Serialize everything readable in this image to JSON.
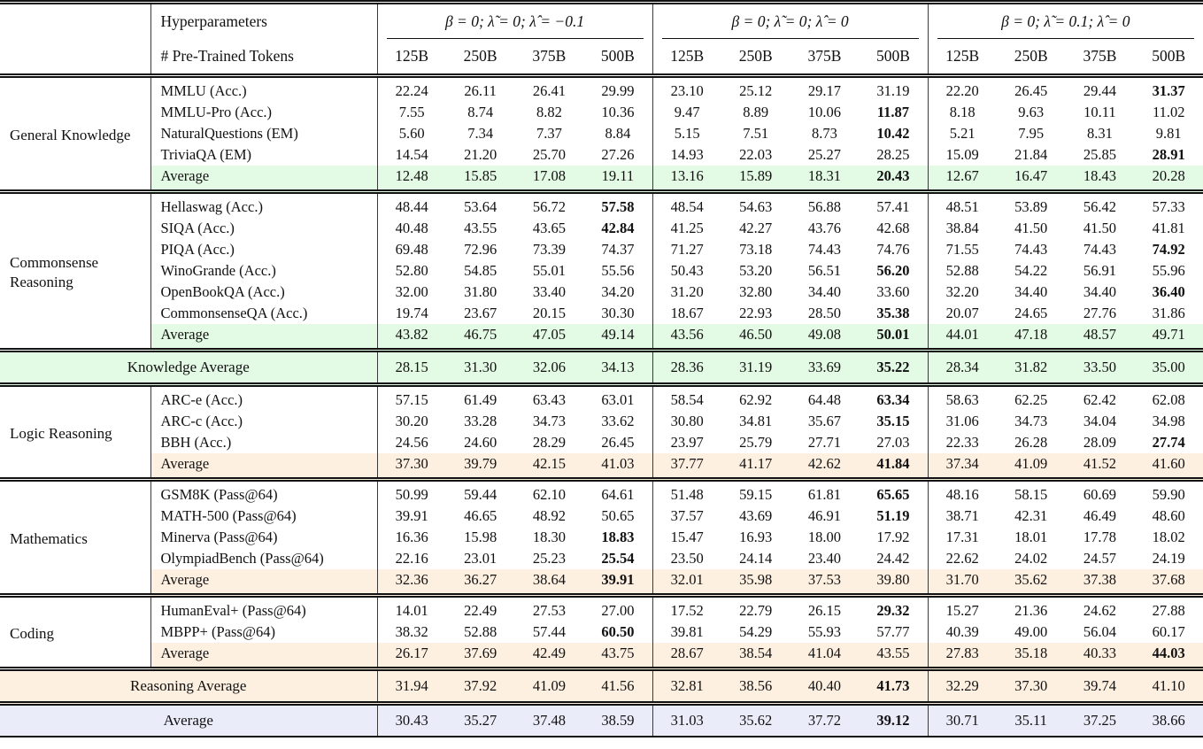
{
  "colors": {
    "green": "#e3fae4",
    "peach": "#fdf0e1",
    "lavender": "#ebecfa",
    "rule": "#111111"
  },
  "header": {
    "hyperparameters_label": "Hyperparameters",
    "tokens_label": "# Pre-Trained Tokens",
    "groups": [
      {
        "label": "β = 0;  λ̃ = 0;  λ̂ = −0.1",
        "tokens": [
          "125B",
          "250B",
          "375B",
          "500B"
        ]
      },
      {
        "label": "β = 0;  λ̃ = 0;  λ̂ = 0",
        "tokens": [
          "125B",
          "250B",
          "375B",
          "500B"
        ]
      },
      {
        "label": "β = 0;  λ̃ = 0.1;  λ̂ = 0",
        "tokens": [
          "125B",
          "250B",
          "375B",
          "500B"
        ]
      }
    ]
  },
  "blocks": [
    {
      "type": "section",
      "category": "General Knowledge",
      "rows": [
        {
          "benchmark": "MMLU (Acc.)",
          "values": [
            "22.24",
            "26.11",
            "26.41",
            "29.99",
            "23.10",
            "25.12",
            "29.17",
            "31.19",
            "22.20",
            "26.45",
            "29.44",
            "31.37"
          ],
          "bold": [
            11
          ]
        },
        {
          "benchmark": "MMLU-Pro (Acc.)",
          "values": [
            "7.55",
            "8.74",
            "8.82",
            "10.36",
            "9.47",
            "8.89",
            "10.06",
            "11.87",
            "8.18",
            "9.63",
            "10.11",
            "11.02"
          ],
          "bold": [
            7
          ]
        },
        {
          "benchmark": "NaturalQuestions (EM)",
          "values": [
            "5.60",
            "7.34",
            "7.37",
            "8.84",
            "5.15",
            "7.51",
            "8.73",
            "10.42",
            "5.21",
            "7.95",
            "8.31",
            "9.81"
          ],
          "bold": [
            7
          ]
        },
        {
          "benchmark": "TriviaQA (EM)",
          "values": [
            "14.54",
            "21.20",
            "25.70",
            "27.26",
            "14.93",
            "22.03",
            "25.27",
            "28.25",
            "15.09",
            "21.84",
            "25.85",
            "28.91"
          ],
          "bold": [
            11
          ]
        },
        {
          "benchmark": "Average",
          "highlight": "green",
          "values": [
            "12.48",
            "15.85",
            "17.08",
            "19.11",
            "13.16",
            "15.89",
            "18.31",
            "20.43",
            "12.67",
            "16.47",
            "18.43",
            "20.28"
          ],
          "bold": [
            7
          ]
        }
      ]
    },
    {
      "type": "section",
      "category": "Commonsense Reasoning",
      "rows": [
        {
          "benchmark": "Hellaswag (Acc.)",
          "values": [
            "48.44",
            "53.64",
            "56.72",
            "57.58",
            "48.54",
            "54.63",
            "56.88",
            "57.41",
            "48.51",
            "53.89",
            "56.42",
            "57.33"
          ],
          "bold": [
            3
          ]
        },
        {
          "benchmark": "SIQA (Acc.)",
          "values": [
            "40.48",
            "43.55",
            "43.65",
            "42.84",
            "41.25",
            "42.27",
            "43.76",
            "42.68",
            "38.84",
            "41.50",
            "41.50",
            "41.81"
          ],
          "bold": [
            3
          ]
        },
        {
          "benchmark": "PIQA (Acc.)",
          "values": [
            "69.48",
            "72.96",
            "73.39",
            "74.37",
            "71.27",
            "73.18",
            "74.43",
            "74.76",
            "71.55",
            "74.43",
            "74.43",
            "74.92"
          ],
          "bold": [
            11
          ]
        },
        {
          "benchmark": "WinoGrande (Acc.)",
          "values": [
            "52.80",
            "54.85",
            "55.01",
            "55.56",
            "50.43",
            "53.20",
            "56.51",
            "56.20",
            "52.88",
            "54.22",
            "56.91",
            "55.96"
          ],
          "bold": [
            7
          ]
        },
        {
          "benchmark": "OpenBookQA (Acc.)",
          "values": [
            "32.00",
            "31.80",
            "33.40",
            "34.20",
            "31.20",
            "32.80",
            "34.40",
            "33.60",
            "32.20",
            "34.40",
            "34.40",
            "36.40"
          ],
          "bold": [
            11
          ]
        },
        {
          "benchmark": "CommonsenseQA (Acc.)",
          "values": [
            "19.74",
            "23.67",
            "20.15",
            "30.30",
            "18.67",
            "22.93",
            "28.50",
            "35.38",
            "20.07",
            "24.65",
            "27.76",
            "31.86"
          ],
          "bold": [
            7
          ]
        },
        {
          "benchmark": "Average",
          "highlight": "green",
          "values": [
            "43.82",
            "46.75",
            "47.05",
            "49.14",
            "43.56",
            "46.50",
            "49.08",
            "50.01",
            "44.01",
            "47.18",
            "48.57",
            "49.71"
          ],
          "bold": [
            7
          ]
        }
      ]
    },
    {
      "type": "summary",
      "label": "Knowledge Average",
      "highlight": "green",
      "values": [
        "28.15",
        "31.30",
        "32.06",
        "34.13",
        "28.36",
        "31.19",
        "33.69",
        "35.22",
        "28.34",
        "31.82",
        "33.50",
        "35.00"
      ],
      "bold": [
        7
      ]
    },
    {
      "type": "section",
      "category": "Logic Reasoning",
      "rows": [
        {
          "benchmark": "ARC-e (Acc.)",
          "values": [
            "57.15",
            "61.49",
            "63.43",
            "63.01",
            "58.54",
            "62.92",
            "64.48",
            "63.34",
            "58.63",
            "62.25",
            "62.42",
            "62.08"
          ],
          "bold": [
            7
          ]
        },
        {
          "benchmark": "ARC-c (Acc.)",
          "values": [
            "30.20",
            "33.28",
            "34.73",
            "33.62",
            "30.80",
            "34.81",
            "35.67",
            "35.15",
            "31.06",
            "34.73",
            "34.04",
            "34.98"
          ],
          "bold": [
            7
          ]
        },
        {
          "benchmark": "BBH (Acc.)",
          "values": [
            "24.56",
            "24.60",
            "28.29",
            "26.45",
            "23.97",
            "25.79",
            "27.71",
            "27.03",
            "22.33",
            "26.28",
            "28.09",
            "27.74"
          ],
          "bold": [
            11
          ]
        },
        {
          "benchmark": "Average",
          "highlight": "peach",
          "values": [
            "37.30",
            "39.79",
            "42.15",
            "41.03",
            "37.77",
            "41.17",
            "42.62",
            "41.84",
            "37.34",
            "41.09",
            "41.52",
            "41.60"
          ],
          "bold": [
            7
          ]
        }
      ]
    },
    {
      "type": "section",
      "category": "Mathematics",
      "rows": [
        {
          "benchmark": "GSM8K (Pass@64)",
          "values": [
            "50.99",
            "59.44",
            "62.10",
            "64.61",
            "51.48",
            "59.15",
            "61.81",
            "65.65",
            "48.16",
            "58.15",
            "60.69",
            "59.90"
          ],
          "bold": [
            7
          ]
        },
        {
          "benchmark": "MATH-500 (Pass@64)",
          "values": [
            "39.91",
            "46.65",
            "48.92",
            "50.65",
            "37.57",
            "43.69",
            "46.91",
            "51.19",
            "38.71",
            "42.31",
            "46.49",
            "48.60"
          ],
          "bold": [
            7
          ]
        },
        {
          "benchmark": "Minerva (Pass@64)",
          "values": [
            "16.36",
            "15.98",
            "18.30",
            "18.83",
            "15.47",
            "16.93",
            "18.00",
            "17.92",
            "17.31",
            "18.01",
            "17.78",
            "18.02"
          ],
          "bold": [
            3
          ]
        },
        {
          "benchmark": "OlympiadBench (Pass@64)",
          "values": [
            "22.16",
            "23.01",
            "25.23",
            "25.54",
            "23.50",
            "24.14",
            "23.40",
            "24.42",
            "22.62",
            "24.02",
            "24.57",
            "24.19"
          ],
          "bold": [
            3
          ]
        },
        {
          "benchmark": "Average",
          "highlight": "peach",
          "values": [
            "32.36",
            "36.27",
            "38.64",
            "39.91",
            "32.01",
            "35.98",
            "37.53",
            "39.80",
            "31.70",
            "35.62",
            "37.38",
            "37.68"
          ],
          "bold": [
            3
          ]
        }
      ]
    },
    {
      "type": "section",
      "category": "Coding",
      "rows": [
        {
          "benchmark": "HumanEval+ (Pass@64)",
          "values": [
            "14.01",
            "22.49",
            "27.53",
            "27.00",
            "17.52",
            "22.79",
            "26.15",
            "29.32",
            "15.27",
            "21.36",
            "24.62",
            "27.88"
          ],
          "bold": [
            7
          ]
        },
        {
          "benchmark": "MBPP+ (Pass@64)",
          "values": [
            "38.32",
            "52.88",
            "57.44",
            "60.50",
            "39.81",
            "54.29",
            "55.93",
            "57.77",
            "40.39",
            "49.00",
            "56.04",
            "60.17"
          ],
          "bold": [
            3
          ]
        },
        {
          "benchmark": "Average",
          "highlight": "peach",
          "values": [
            "26.17",
            "37.69",
            "42.49",
            "43.75",
            "28.67",
            "38.54",
            "41.04",
            "43.55",
            "27.83",
            "35.18",
            "40.33",
            "44.03"
          ],
          "bold": [
            11
          ]
        }
      ]
    },
    {
      "type": "summary",
      "label": "Reasoning Average",
      "highlight": "peach",
      "values": [
        "31.94",
        "37.92",
        "41.09",
        "41.56",
        "32.81",
        "38.56",
        "40.40",
        "41.73",
        "32.29",
        "37.30",
        "39.74",
        "41.10"
      ],
      "bold": [
        7
      ]
    },
    {
      "type": "summary",
      "label": "Average",
      "highlight": "lavender",
      "values": [
        "30.43",
        "35.27",
        "37.48",
        "38.59",
        "31.03",
        "35.62",
        "37.72",
        "39.12",
        "30.71",
        "35.11",
        "37.25",
        "38.66"
      ],
      "bold": [
        7
      ]
    }
  ]
}
